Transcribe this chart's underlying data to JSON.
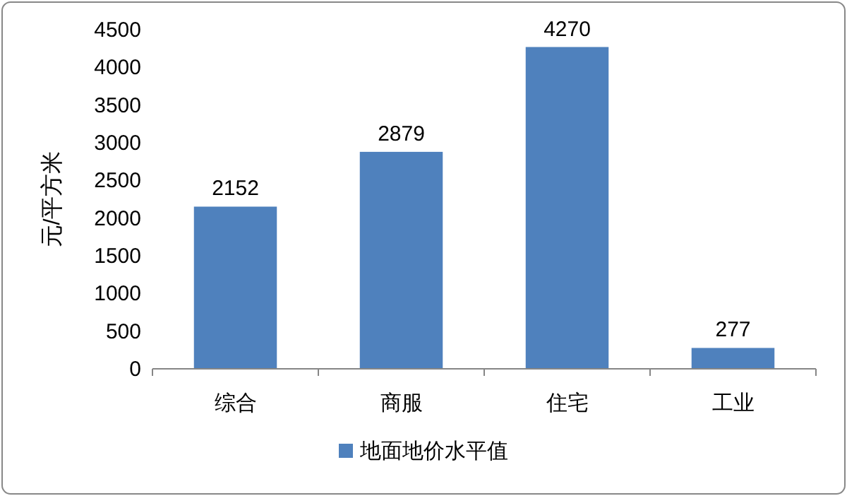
{
  "chart_data": {
    "type": "bar",
    "ylabel": "元/平方米",
    "categories": [
      "综合",
      "商服",
      "住宅",
      "工业"
    ],
    "series": [
      {
        "name": "地面地价水平值",
        "color": "#4f81bd",
        "values": [
          2152,
          2879,
          4270,
          277
        ]
      }
    ],
    "ylim": [
      0,
      4500
    ],
    "yticks": [
      0,
      500,
      1000,
      1500,
      2000,
      2500,
      3000,
      3500,
      4000,
      4500
    ],
    "data_labels": true,
    "legend": "bottom"
  }
}
